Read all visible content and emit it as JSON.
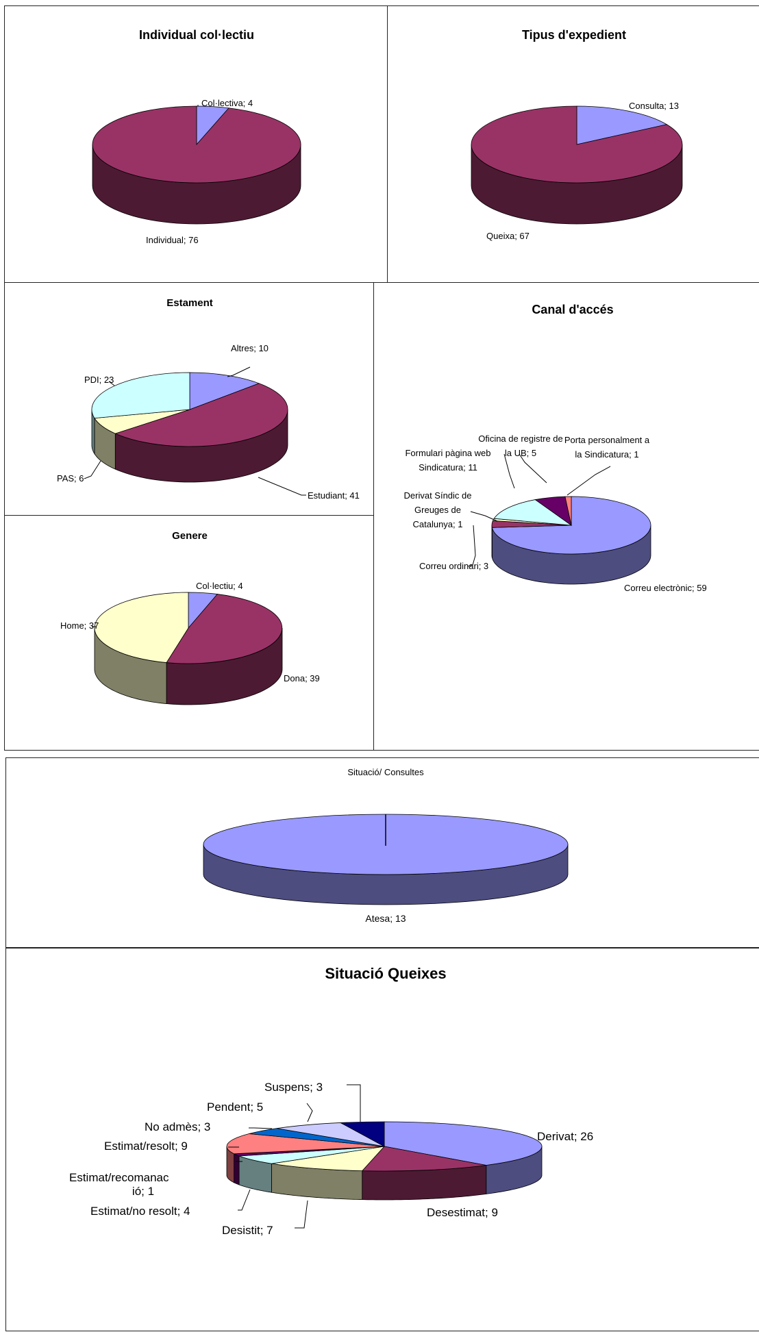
{
  "colors": {
    "periwinkle": "#9999ff",
    "plum": "#993366",
    "ivory": "#ffffcc",
    "lightcyan": "#ccffff",
    "purple": "#660066",
    "salmon": "#ff8080",
    "blue": "#0066cc",
    "lavender": "#ccccff",
    "navy": "#000080",
    "pink": "#ff00ff"
  },
  "chart_data": [
    {
      "id": "individual",
      "type": "pie",
      "title": "Individual col·lectiu",
      "slices": [
        {
          "label": "Col·lectiva; 4",
          "value": 4,
          "color": "#9999ff"
        },
        {
          "label": "Individual; 76",
          "value": 76,
          "color": "#993366"
        }
      ]
    },
    {
      "id": "tipus",
      "type": "pie",
      "title": "Tipus d'expedient",
      "slices": [
        {
          "label": "Consulta; 13",
          "value": 13,
          "color": "#9999ff"
        },
        {
          "label": "Queixa; 67",
          "value": 67,
          "color": "#993366"
        }
      ]
    },
    {
      "id": "estament",
      "type": "pie",
      "title": "Estament",
      "slices": [
        {
          "label": "Altres; 10",
          "value": 10,
          "color": "#9999ff"
        },
        {
          "label": "Estudiant; 41",
          "value": 41,
          "color": "#993366"
        },
        {
          "label": "PAS; 6",
          "value": 6,
          "color": "#ffffcc"
        },
        {
          "label": "PDI; 23",
          "value": 23,
          "color": "#ccffff"
        }
      ]
    },
    {
      "id": "genere",
      "type": "pie",
      "title": "Genere",
      "slices": [
        {
          "label": "Col·lectiu; 4",
          "value": 4,
          "color": "#9999ff"
        },
        {
          "label": "Dona; 39",
          "value": 39,
          "color": "#993366"
        },
        {
          "label": "Home; 37",
          "value": 37,
          "color": "#ffffcc"
        }
      ]
    },
    {
      "id": "canal",
      "type": "pie",
      "title": "Canal d'accés",
      "slices": [
        {
          "label": "Correu electrònic; 59",
          "value": 59,
          "color": "#9999ff"
        },
        {
          "label": "Correu ordinari; 3",
          "value": 3,
          "color": "#993366"
        },
        {
          "label": "Derivat Síndic de Greuges de Catalunya; 1",
          "value": 1,
          "color": "#ffffcc"
        },
        {
          "label": "Formulari pàgina web Sindicatura; 11",
          "value": 11,
          "color": "#ccffff"
        },
        {
          "label": "Oficina de registre de la UB; 5",
          "value": 5,
          "color": "#660066"
        },
        {
          "label": "Porta personalment a la Sindicatura; 1",
          "value": 1,
          "color": "#ff8080"
        }
      ]
    },
    {
      "id": "consultes",
      "type": "pie",
      "title": "Situació/ Consultes",
      "slices": [
        {
          "label": "Atesa; 13",
          "value": 13,
          "color": "#9999ff"
        }
      ]
    },
    {
      "id": "queixes",
      "type": "pie",
      "title": "Situació Queixes",
      "slices": [
        {
          "label": "Derivat; 26",
          "value": 26,
          "color": "#9999ff"
        },
        {
          "label": "Desestimat; 9",
          "value": 9,
          "color": "#993366"
        },
        {
          "label": "Desistit; 7",
          "value": 7,
          "color": "#ffffcc"
        },
        {
          "label": "Estimat/no resolt; 4",
          "value": 4,
          "color": "#ccffff"
        },
        {
          "label": "Estimat/recomanació; 1",
          "value": 1,
          "color": "#660066"
        },
        {
          "label": "Estimat/resolt; 9",
          "value": 9,
          "color": "#ff8080"
        },
        {
          "label": "No admès; 3",
          "value": 3,
          "color": "#0066cc"
        },
        {
          "label": "Pendent; 5",
          "value": 5,
          "color": "#ccccff"
        },
        {
          "label": "Suspens; 3",
          "value": 3,
          "color": "#000080"
        }
      ]
    }
  ],
  "labels": {
    "individual": [
      "Col·lectiva; 4",
      "Individual; 76"
    ],
    "tipus": [
      "Consulta; 13",
      "Queixa; 67"
    ],
    "estament": [
      "Altres; 10",
      "Estudiant; 41",
      "PAS; 6",
      "PDI; 23"
    ],
    "genere": [
      "Col·lectiu; 4",
      "Dona; 39",
      "Home; 37"
    ],
    "canal": [
      [
        "Correu electrònic; 59"
      ],
      [
        "Correu ordinari; 3"
      ],
      [
        "Derivat Síndic de",
        "Greuges de",
        "Catalunya; 1"
      ],
      [
        "Formulari pàgina web",
        "Sindicatura; 11"
      ],
      [
        "Oficina de registre de",
        "la UB; 5"
      ],
      [
        "Porta personalment a",
        "la Sindicatura; 1"
      ]
    ],
    "consultes": [
      "Atesa; 13"
    ],
    "queixes": [
      [
        "Derivat; 26"
      ],
      [
        "Desestimat; 9"
      ],
      [
        "Desistit; 7"
      ],
      [
        "Estimat/no resolt; 4"
      ],
      [
        "Estimat/recomanac",
        "ió; 1"
      ],
      [
        "Estimat/resolt; 9"
      ],
      [
        "No admès; 3"
      ],
      [
        "Pendent; 5"
      ],
      [
        "Suspens; 3"
      ]
    ]
  }
}
